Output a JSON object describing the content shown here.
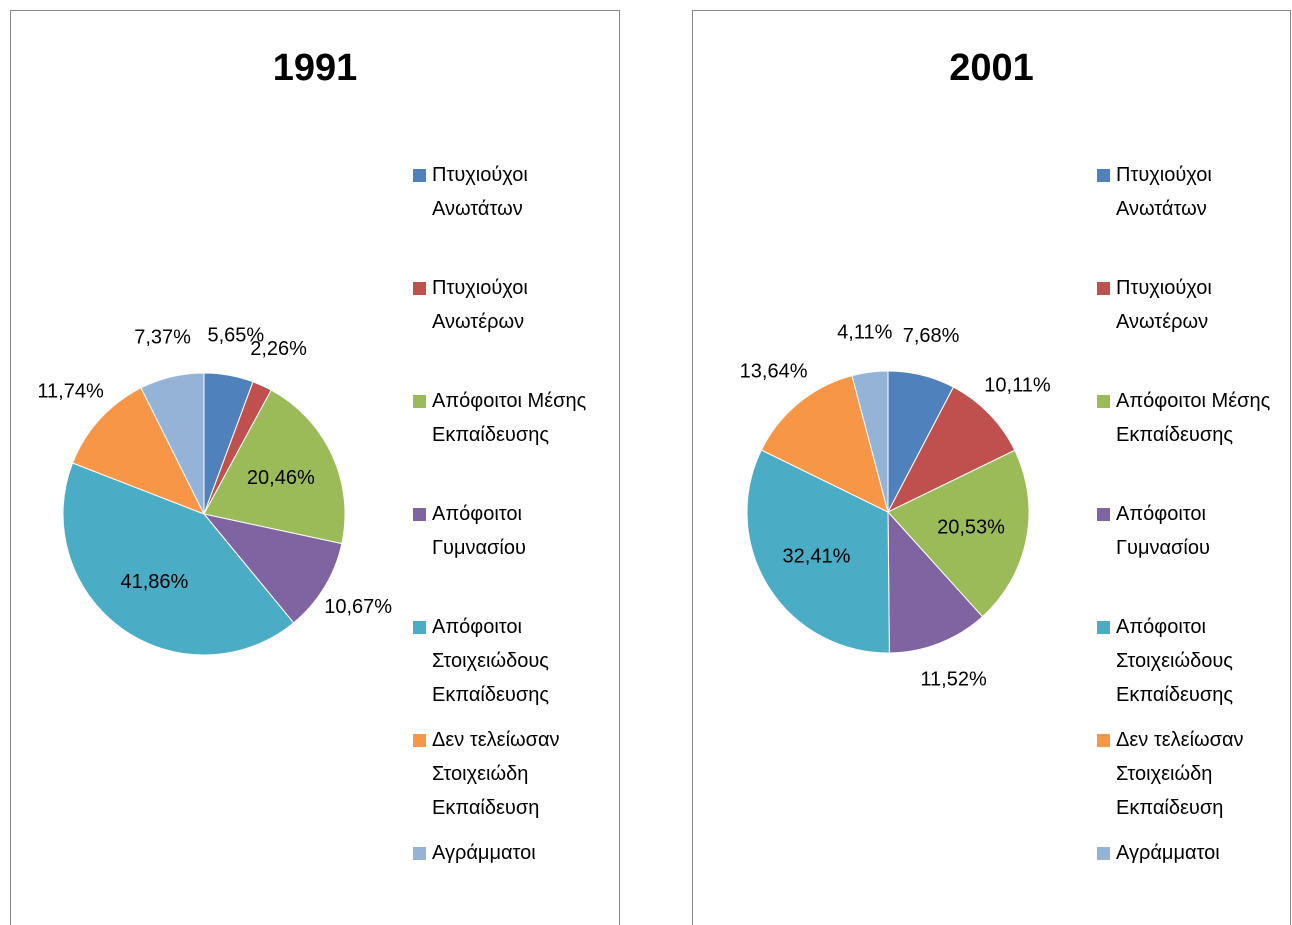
{
  "chart_data": [
    {
      "type": "pie",
      "title": "1991",
      "categories": [
        "Πτυχιούχοι Ανωτάτων",
        "Πτυχιούχοι Ανωτέρων",
        "Απόφοιτοι Μέσης Εκπαίδευσης",
        "Απόφοιτοι Γυμνασίου",
        "Απόφοιτοι Στοιχειώδους Εκπαίδευσης",
        "Δεν τελείωσαν Στοιχειώδη Εκπαίδευση",
        "Αγράμματοι"
      ],
      "values": [
        5.65,
        2.26,
        20.46,
        10.67,
        41.86,
        11.74,
        7.37
      ],
      "value_labels": [
        "5,65%",
        "2,26%",
        "20,46%",
        "10,67%",
        "41,86%",
        "11,74%",
        "7,37%"
      ],
      "colors": [
        "#4f81bd",
        "#c0504d",
        "#9bbb59",
        "#8064a2",
        "#4bacc6",
        "#f79646",
        "#95b3d7"
      ],
      "legend": "right"
    },
    {
      "type": "pie",
      "title": "2001",
      "categories": [
        "Πτυχιούχοι Ανωτάτων",
        "Πτυχιούχοι Ανωτέρων",
        "Απόφοιτοι Μέσης Εκπαίδευσης",
        "Απόφοιτοι Γυμνασίου",
        "Απόφοιτοι Στοιχειώδους Εκπαίδευσης",
        "Δεν τελείωσαν Στοιχειώδη Εκπαίδευση",
        "Αγράμματοι"
      ],
      "values": [
        7.68,
        10.11,
        20.53,
        11.52,
        32.41,
        13.64,
        4.11
      ],
      "value_labels": [
        "7,68%",
        "10,11%",
        "20,53%",
        "11,52%",
        "32,41%",
        "13,64%",
        "4,11%"
      ],
      "colors": [
        "#4f81bd",
        "#c0504d",
        "#9bbb59",
        "#8064a2",
        "#4bacc6",
        "#f79646",
        "#95b3d7"
      ],
      "legend": "right"
    }
  ]
}
